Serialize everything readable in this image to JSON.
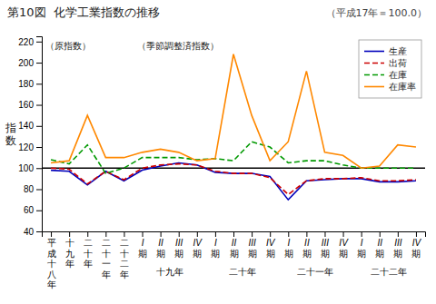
{
  "chart_data": {
    "type": "line",
    "title": "第10図  化学工業指数の推移",
    "subtitle": "（平成17年＝100.0）",
    "ylabel": "指数",
    "categories": [
      "平成十八年",
      "十九年",
      "二十年",
      "二十一年",
      "二十二年",
      "I期",
      "II期",
      "III期",
      "IV期",
      "I期",
      "II期",
      "III期",
      "IV期",
      "I期",
      "II期",
      "III期",
      "IV期",
      "I期",
      "II期",
      "III期",
      "IV期"
    ],
    "category_groups": [
      {
        "label": "十九年",
        "start": 5,
        "end": 8
      },
      {
        "label": "二十年",
        "start": 9,
        "end": 12
      },
      {
        "label": "二十一年",
        "start": 13,
        "end": 16
      },
      {
        "label": "二十二年",
        "start": 17,
        "end": 20
      }
    ],
    "series": [
      {
        "name": "生産",
        "color": "#0000bb",
        "line_style": "solid",
        "values": [
          98,
          97,
          84,
          97,
          88,
          98,
          102,
          105,
          103,
          96,
          95,
          95,
          92,
          70,
          88,
          89,
          90,
          90,
          87,
          87,
          88
        ]
      },
      {
        "name": "出荷",
        "color": "#cc0000",
        "line_style": "dashed",
        "values": [
          100,
          99,
          85,
          97,
          89,
          100,
          103,
          104,
          103,
          97,
          95,
          95,
          91,
          75,
          88,
          90,
          90,
          91,
          88,
          88,
          89
        ]
      },
      {
        "name": "在庫",
        "color": "#009900",
        "line_style": "dashed",
        "values": [
          108,
          104,
          122,
          95,
          100,
          110,
          110,
          110,
          108,
          109,
          107,
          125,
          120,
          105,
          107,
          107,
          103,
          100,
          100,
          100,
          100
        ]
      },
      {
        "name": "在庫率",
        "color": "#ff8800",
        "line_style": "solid",
        "values": [
          105,
          107,
          150,
          110,
          110,
          115,
          118,
          115,
          107,
          109,
          208,
          150,
          107,
          125,
          192,
          115,
          112,
          100,
          102,
          122,
          120
        ]
      }
    ],
    "ylim": [
      40,
      225
    ],
    "yticks": [
      40,
      60,
      80,
      100,
      120,
      140,
      160,
      180,
      200,
      220
    ],
    "hline": 100,
    "annotations": [
      "（原指数）",
      "（季節調整済指数）"
    ],
    "legend": "upper right",
    "grid": false
  }
}
